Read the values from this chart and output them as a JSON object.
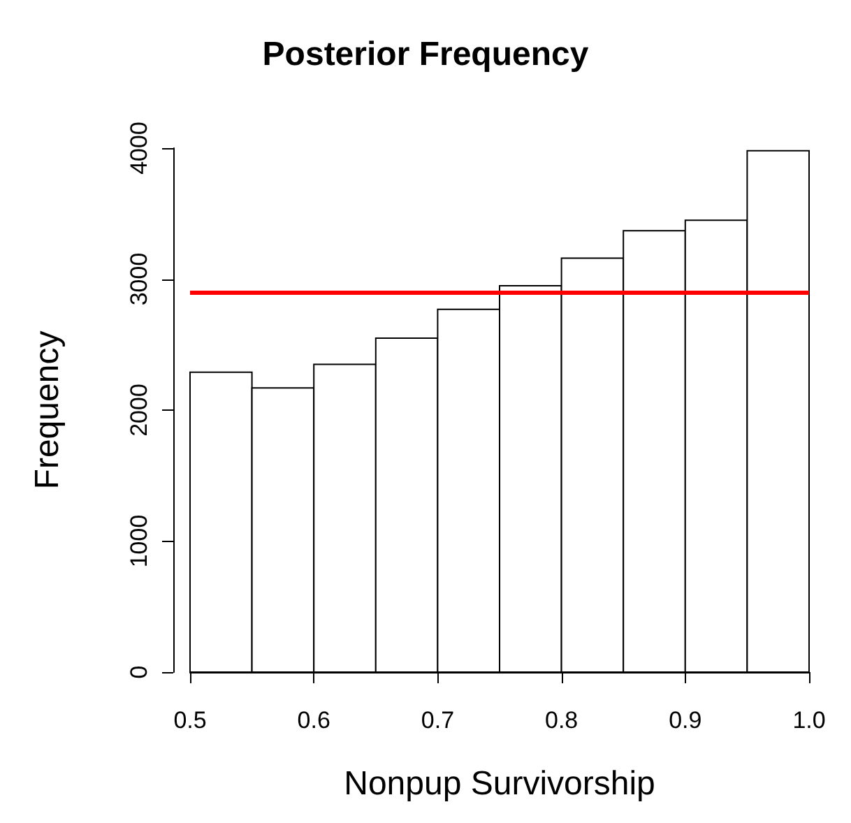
{
  "chart_data": {
    "type": "histogram",
    "title": "Posterior Frequency",
    "xlabel": "Nonpup Survivorship",
    "ylabel": "Frequency",
    "bins": [
      0.5,
      0.55,
      0.6,
      0.65,
      0.7,
      0.75,
      0.8,
      0.85,
      0.9,
      0.95,
      1.0
    ],
    "values": [
      2290,
      2170,
      2350,
      2550,
      2770,
      2950,
      3160,
      3370,
      3450,
      3980
    ],
    "color": "#ffffff",
    "xlim": [
      0.5,
      1.0
    ],
    "xticks": [
      0.5,
      0.6,
      0.7,
      0.8,
      0.9,
      {
        "value": 1,
        "label": "1.0"
      }
    ],
    "ylim": [
      0,
      4000
    ],
    "yticks": [
      0,
      1000,
      2000,
      3000,
      4000
    ],
    "ref_lines": [
      {
        "axis": "y",
        "value": 2900,
        "color": "#ff0000"
      }
    ],
    "grid": false
  }
}
